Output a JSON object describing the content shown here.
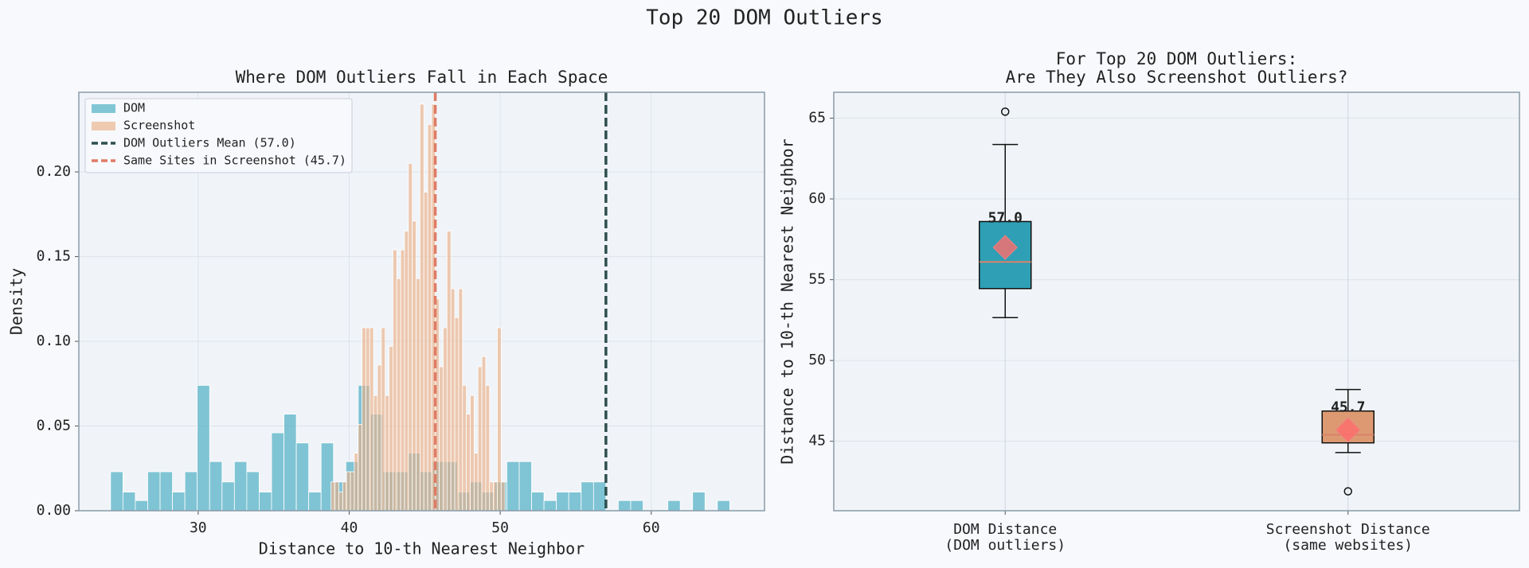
{
  "title": "Top 20 DOM Outliers",
  "chart_data": [
    {
      "type": "histogram",
      "title": "Where DOM Outliers Fall in Each Space",
      "xlabel": "Distance to 10-th Nearest Neighbor",
      "ylabel": "Density",
      "xlim": [
        22.1,
        67.5
      ],
      "ylim": [
        0,
        0.247
      ],
      "xticks": [
        30,
        40,
        50,
        60
      ],
      "yticks": [
        {
          "value": 0,
          "label": "0.00"
        },
        {
          "value": 0.05,
          "label": "0.05"
        },
        {
          "value": 0.1,
          "label": "0.10"
        },
        {
          "value": 0.15,
          "label": "0.15"
        },
        {
          "value": 0.2,
          "label": "0.20"
        }
      ],
      "grid": true,
      "legend": "upper left",
      "series": [
        {
          "name": "DOM",
          "color": "#5ab4c8",
          "opacity": 0.75,
          "bins": [
            24.2,
            25.02,
            25.84,
            26.66,
            27.48,
            28.3,
            29.12,
            29.94,
            30.76,
            31.58,
            32.4,
            33.22,
            34.04,
            34.86,
            35.68,
            36.5,
            37.32,
            38.14,
            38.96,
            39.78,
            40.6,
            41.42,
            42.24,
            43.06,
            43.88,
            44.7,
            45.52,
            46.34,
            47.16,
            47.98,
            48.8,
            49.62,
            50.44,
            51.26,
            52.08,
            52.9,
            53.72,
            54.54,
            55.36,
            56.18,
            57.0,
            57.82,
            58.64,
            59.46,
            60.28,
            61.1,
            61.92,
            62.74,
            63.56,
            64.38,
            65.2
          ],
          "values": [
            0.023,
            0.011,
            0.006,
            0.023,
            0.023,
            0.011,
            0.023,
            0.074,
            0.029,
            0.017,
            0.029,
            0.023,
            0.011,
            0.046,
            0.057,
            0.04,
            0.011,
            0.04,
            0.017,
            0.029,
            0.074,
            0.057,
            0.023,
            0.023,
            0.034,
            0.023,
            0.029,
            0.029,
            0.011,
            0.017,
            0.011,
            0.017,
            0.029,
            0.029,
            0.011,
            0.006,
            0.011,
            0.011,
            0.017,
            0.017,
            0,
            0.006,
            0.006,
            0,
            0,
            0.006,
            0,
            0.011,
            0,
            0.006
          ]
        },
        {
          "name": "Screenshot",
          "color": "#eab089",
          "opacity": 0.65,
          "bins": [
            38.8,
            39.056,
            39.312,
            39.568,
            39.824,
            40.08,
            40.336,
            40.592,
            40.848,
            41.104,
            41.36,
            41.616,
            41.872,
            42.128,
            42.384,
            42.64,
            42.896,
            43.152,
            43.408,
            43.664,
            43.92,
            44.176,
            44.432,
            44.688,
            44.944,
            45.2,
            45.456,
            45.712,
            45.968,
            46.224,
            46.48,
            46.736,
            46.992,
            47.248,
            47.504,
            47.76,
            48.016,
            48.272,
            48.528,
            48.784,
            49.04,
            49.296,
            49.552,
            49.808,
            50.064,
            50.32
          ],
          "values": [
            0.017,
            0.017,
            0.011,
            0.017,
            0.023,
            0.023,
            0.034,
            0.051,
            0.108,
            0.108,
            0.108,
            0.068,
            0.086,
            0.108,
            0.068,
            0.097,
            0.154,
            0.137,
            0.154,
            0.165,
            0.205,
            0.171,
            0.137,
            0.24,
            0.188,
            0.228,
            0.24,
            0.125,
            0.085,
            0.108,
            0.165,
            0.131,
            0.114,
            0.131,
            0.074,
            0.057,
            0.068,
            0.034,
            0.085,
            0.091,
            0.074,
            0.017,
            0.017,
            0.108,
            0.017
          ]
        }
      ],
      "vlines": [
        {
          "value": 57.0,
          "label": "DOM Outliers Mean (57.0)",
          "color": "#2f4f4f"
        },
        {
          "value": 45.7,
          "label": "Same Sites in Screenshot (45.7)",
          "color": "#e07b65"
        }
      ]
    },
    {
      "type": "box",
      "title": [
        "For Top 20 DOM Outliers:",
        "Are They Also Screenshot Outliers?"
      ],
      "ylabel": "Distance to 10-th Nearest Neighbor",
      "ylim": [
        40.7,
        66.6
      ],
      "yticks": [
        45,
        50,
        55,
        60,
        65
      ],
      "grid": true,
      "categories": [
        [
          "DOM Distance",
          "(DOM outliers)"
        ],
        [
          "Screenshot Distance",
          "(same websites)"
        ]
      ],
      "colors": [
        "#2e9fb5",
        "#dd9a72"
      ],
      "median_color": "#d9826a",
      "mean_color": "#ff6b6b",
      "whisker_low": [
        52.65,
        44.3
      ],
      "q1": [
        54.45,
        44.9
      ],
      "median": [
        56.1,
        45.4
      ],
      "q3": [
        58.6,
        46.87
      ],
      "whisker_high": [
        63.37,
        48.2
      ],
      "outliers": [
        [
          65.4
        ],
        [
          41.9
        ]
      ],
      "means": [
        57.0,
        45.7
      ],
      "mean_labels": [
        "57.0",
        "45.7"
      ]
    }
  ]
}
